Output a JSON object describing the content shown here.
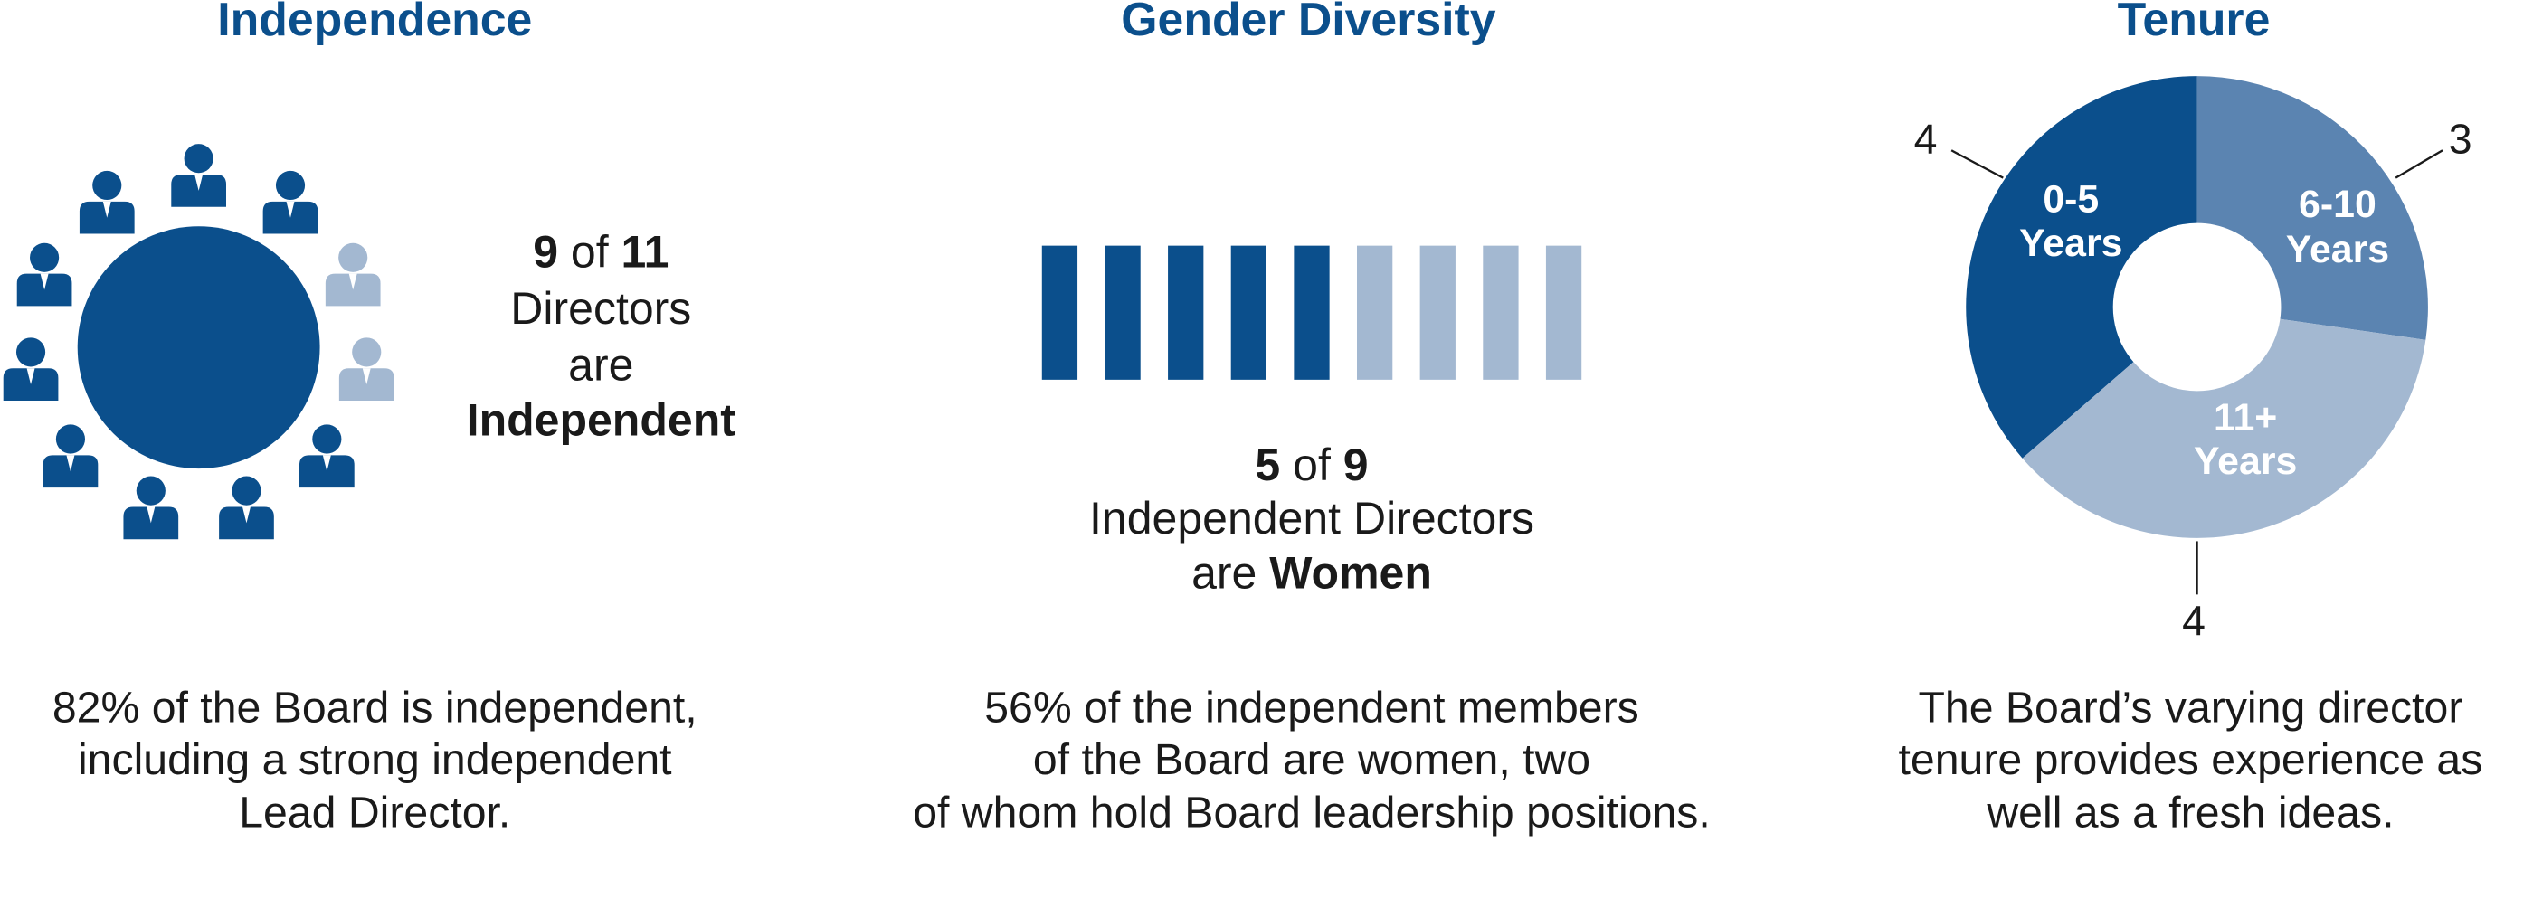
{
  "independence": {
    "title": "Independence",
    "count": 9,
    "of": "of",
    "total": 11,
    "lines": [
      "Directors",
      "are"
    ],
    "emphasis": "Independent",
    "caption": [
      "82% of the Board is independent,",
      "including a strong independent",
      "Lead Director."
    ],
    "colors": [
      "#0b4f8c",
      "#a3b8d1"
    ]
  },
  "gender": {
    "title": "Gender Diversity",
    "count": 5,
    "of": "of",
    "total": 9,
    "lines": [
      "Independent Directors"
    ],
    "prefix": "are",
    "emphasis": "Women",
    "caption": [
      "56% of the independent members",
      "of the Board are women, two",
      "of whom hold Board leadership positions."
    ],
    "colors": [
      "#0b4f8c",
      "#a3b8d1"
    ]
  },
  "tenure": {
    "title": "Tenure",
    "segments": [
      {
        "label": [
          "0-5",
          "Years"
        ],
        "value": 4,
        "color": "#0b4f8c"
      },
      {
        "label": [
          "6-10",
          "Years"
        ],
        "value": 3,
        "color": "#5b84b1"
      },
      {
        "label": [
          "11+",
          "Years"
        ],
        "value": 4,
        "color": "#a3b8d1"
      }
    ],
    "caption": [
      "The Board’s varying director",
      "tenure provides experience as",
      "well as a fresh ideas."
    ]
  }
}
